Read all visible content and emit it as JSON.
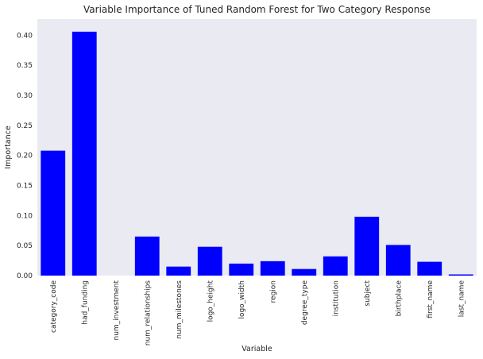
{
  "chart_data": {
    "type": "bar",
    "title": "Variable Importance of Tuned Random Forest for Two Category Response",
    "xlabel": "Variable",
    "ylabel": "Importance",
    "categories": [
      "category_code",
      "had_funding",
      "num_investment",
      "num_relationships",
      "num_milestones",
      "logo_height",
      "logo_width",
      "region",
      "degree_type",
      "institution",
      "subject",
      "birthplace",
      "first_name",
      "last_name"
    ],
    "values": [
      0.208,
      0.406,
      0.0,
      0.065,
      0.015,
      0.048,
      0.02,
      0.024,
      0.011,
      0.032,
      0.098,
      0.051,
      0.023,
      0.002
    ],
    "yticks": [
      0.0,
      0.05,
      0.1,
      0.15,
      0.2,
      0.25,
      0.3,
      0.35,
      0.4
    ],
    "ytick_labels": [
      "0.00",
      "0.05",
      "0.10",
      "0.15",
      "0.20",
      "0.25",
      "0.30",
      "0.35",
      "0.40"
    ],
    "ylim": [
      0,
      0.427
    ],
    "grid": false,
    "legend": "none",
    "colors": {
      "bar": "#0000ff",
      "plot_background": "#eaeaf2",
      "text": "#262626"
    }
  }
}
